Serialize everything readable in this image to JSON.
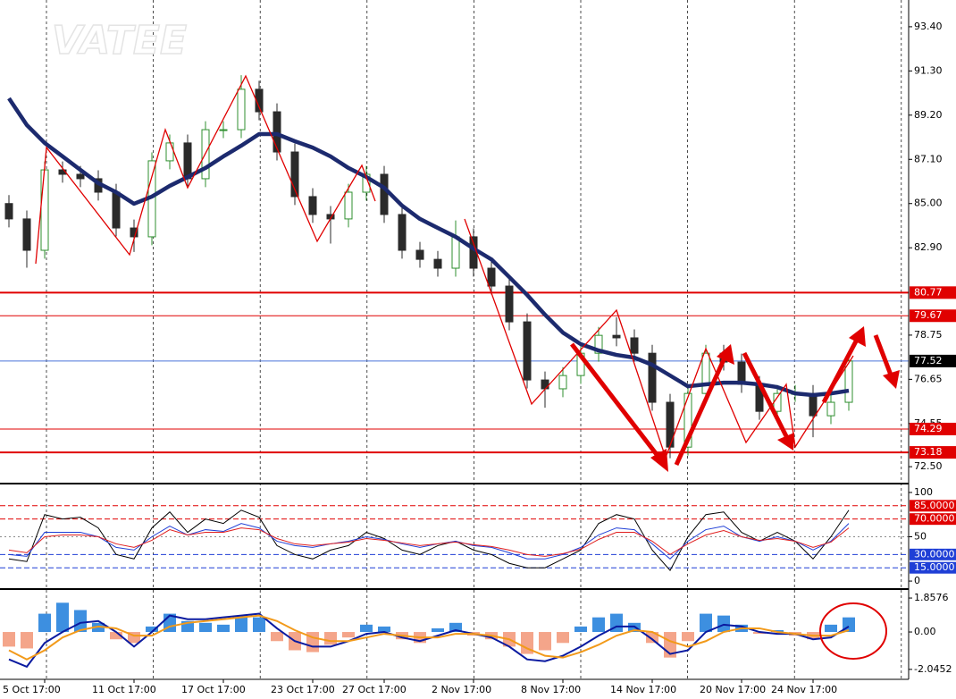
{
  "chart_data": [
    {
      "type": "candlestick",
      "watermark": "VATEE",
      "categories": [
        null,
        null,
        "5 Oct 17:00",
        null,
        null,
        null,
        null,
        "11 Oct 17:00",
        null,
        null,
        null,
        null,
        "17 Oct 17:00",
        null,
        null,
        null,
        null,
        "23 Oct 17:00",
        null,
        null,
        null,
        "27 Oct 17:00",
        null,
        null,
        null,
        null,
        "2 Nov 17:00",
        null,
        null,
        null,
        null,
        "8 Nov 17:00",
        null,
        null,
        null,
        null,
        "14 Nov 17:00",
        null,
        null,
        null,
        null,
        "20 Nov 17:00",
        null,
        null,
        null,
        "24 Nov 17:00",
        null,
        null
      ],
      "open": [
        85.0,
        84.27,
        82.78,
        86.6,
        86.39,
        86.18,
        85.54,
        83.84,
        83.42,
        87.03,
        87.88,
        86.18,
        88.51,
        88.51,
        90.43,
        89.36,
        87.45,
        85.33,
        84.48,
        84.27,
        85.54,
        86.39,
        84.48,
        82.78,
        82.35,
        81.93,
        83.42,
        81.93,
        81.08,
        79.38,
        76.62,
        76.2,
        76.83,
        77.89,
        78.74,
        78.62,
        77.89,
        75.56,
        73.43,
        75.98,
        77.89,
        77.47,
        76.41,
        75.13,
        75.98,
        75.98,
        74.92,
        75.56
      ],
      "high": [
        85.4,
        84.67,
        87.0,
        87.0,
        86.79,
        86.58,
        85.94,
        84.24,
        87.43,
        88.28,
        88.28,
        88.91,
        88.91,
        91.1,
        90.83,
        89.76,
        87.85,
        85.73,
        84.88,
        85.94,
        86.79,
        86.79,
        84.88,
        83.18,
        82.75,
        84.2,
        83.82,
        82.33,
        81.48,
        79.78,
        77.02,
        77.23,
        78.29,
        79.14,
        79.6,
        79.02,
        78.29,
        75.96,
        76.38,
        78.29,
        78.29,
        77.87,
        76.81,
        76.38,
        76.38,
        76.38,
        75.96,
        77.92
      ],
      "low": [
        83.87,
        81.95,
        82.38,
        85.99,
        85.78,
        85.14,
        83.44,
        82.7,
        83.02,
        86.63,
        85.78,
        85.78,
        88.11,
        88.11,
        88.96,
        87.05,
        84.93,
        84.08,
        83.1,
        83.87,
        85.14,
        84.08,
        82.38,
        81.95,
        81.53,
        81.53,
        81.53,
        80.68,
        78.98,
        76.22,
        75.3,
        75.8,
        76.43,
        77.49,
        78.22,
        77.49,
        75.16,
        72.9,
        73.03,
        75.58,
        77.07,
        76.01,
        74.73,
        74.73,
        75.58,
        73.9,
        74.52,
        75.16
      ],
      "close": [
        84.27,
        82.78,
        86.6,
        86.39,
        86.18,
        85.54,
        83.84,
        83.42,
        87.03,
        87.88,
        86.18,
        88.51,
        88.51,
        90.43,
        89.36,
        87.45,
        85.33,
        84.48,
        84.27,
        85.54,
        86.39,
        84.48,
        82.78,
        82.35,
        81.93,
        83.42,
        81.93,
        81.08,
        79.38,
        76.62,
        76.2,
        76.83,
        77.89,
        78.74,
        78.62,
        77.89,
        75.56,
        73.43,
        75.98,
        77.89,
        77.47,
        76.41,
        75.13,
        75.98,
        75.98,
        74.92,
        75.56,
        77.52
      ],
      "up_color": "#2f8f2f",
      "down_color": "#2a2a2a",
      "ma_values": [
        90.0,
        88.73,
        87.88,
        87.24,
        86.6,
        85.97,
        85.54,
        84.99,
        85.33,
        85.84,
        86.26,
        86.69,
        87.24,
        87.75,
        88.3,
        88.3,
        87.96,
        87.66,
        87.24,
        86.69,
        86.26,
        85.75,
        84.9,
        84.27,
        83.84,
        83.42,
        82.86,
        82.35,
        81.51,
        80.66,
        79.72,
        78.87,
        78.32,
        78.02,
        77.81,
        77.68,
        77.34,
        76.83,
        76.32,
        76.41,
        76.49,
        76.49,
        76.41,
        76.28,
        75.98,
        75.9,
        75.98,
        76.11
      ],
      "ma_color": "#1c2a6e",
      "ylim": [
        71.74,
        94.67
      ],
      "yticks": [
        {
          "value": 93.4,
          "label": "93.40"
        },
        {
          "value": 91.3,
          "label": "91.30"
        },
        {
          "value": 89.2,
          "label": "89.20"
        },
        {
          "value": 87.1,
          "label": "87.10"
        },
        {
          "value": 85,
          "label": "85.00"
        },
        {
          "value": 82.9,
          "label": "82.90"
        },
        78.75,
        76.65,
        74.55,
        {
          "value": 72.5,
          "label": "72.50"
        }
      ],
      "levels": [
        {
          "value": 80.77,
          "color": "#e00000",
          "width": 2,
          "label_color": "#e00000"
        },
        {
          "value": 79.67,
          "color": "#e00000",
          "width": 1,
          "label_color": "#e00000"
        },
        {
          "value": 77.52,
          "color": "#4a74d9",
          "width": 1,
          "label_color": "#000000"
        },
        {
          "value": 74.29,
          "color": "#e00000",
          "width": 1,
          "label_color": "#e00000"
        },
        {
          "value": 73.18,
          "color": "#e00000",
          "width": 2,
          "label_color": "#e00000"
        }
      ]
    },
    {
      "type": "line",
      "series": [
        {
          "color": "#000000",
          "values": [
            25,
            22,
            75,
            70,
            72,
            60,
            30,
            25,
            60,
            78,
            55,
            70,
            65,
            80,
            72,
            40,
            30,
            25,
            35,
            40,
            55,
            48,
            35,
            30,
            40,
            45,
            35,
            30,
            20,
            15,
            15,
            25,
            35,
            65,
            75,
            70,
            35,
            12,
            50,
            75,
            78,
            55,
            45,
            55,
            45,
            25,
            50,
            80
          ]
        },
        {
          "color": "#1f3fd6",
          "values": [
            30,
            28,
            55,
            55,
            55,
            50,
            38,
            35,
            50,
            62,
            52,
            58,
            56,
            65,
            60,
            45,
            40,
            38,
            42,
            45,
            50,
            47,
            42,
            38,
            42,
            45,
            40,
            38,
            32,
            25,
            25,
            30,
            38,
            52,
            60,
            58,
            42,
            25,
            45,
            58,
            62,
            50,
            45,
            50,
            45,
            35,
            45,
            65
          ]
        },
        {
          "color": "#e02020",
          "values": [
            35,
            32,
            50,
            52,
            52,
            50,
            42,
            38,
            46,
            58,
            52,
            55,
            55,
            60,
            58,
            48,
            42,
            40,
            42,
            44,
            48,
            46,
            43,
            40,
            42,
            44,
            41,
            39,
            35,
            30,
            28,
            31,
            36,
            47,
            55,
            55,
            45,
            30,
            42,
            52,
            57,
            50,
            46,
            48,
            45,
            38,
            44,
            60
          ]
        }
      ],
      "ylim": [
        -8,
        108
      ],
      "yticks": [
        100,
        50,
        0
      ],
      "levels": [
        {
          "value": 85,
          "label": "85.0000",
          "color": "#e00000"
        },
        {
          "value": 70,
          "label": "70.0000",
          "color": "#e00000"
        },
        {
          "value": 30,
          "label": "30.0000",
          "color": "#1f3fd6"
        },
        {
          "value": 15,
          "label": "15.0000",
          "color": "#1f3fd6"
        }
      ]
    },
    {
      "type": "macd",
      "values": [
        -0.8,
        -0.9,
        1.0,
        1.6,
        1.2,
        0.5,
        -0.4,
        -0.6,
        0.3,
        1.0,
        0.6,
        0.5,
        0.4,
        0.9,
        0.8,
        -0.5,
        -1.0,
        -1.1,
        -0.7,
        -0.3,
        0.4,
        0.3,
        -0.4,
        -0.6,
        0.2,
        0.5,
        -0.2,
        -0.4,
        -0.8,
        -1.2,
        -1.0,
        -0.6,
        0.3,
        0.8,
        1.0,
        0.5,
        -0.6,
        -1.4,
        -0.5,
        1.0,
        0.9,
        0.4,
        -0.1,
        0.1,
        -0.2,
        -0.4,
        0.4,
        0.8
      ],
      "pos_color": "#3d8fe0",
      "neg_color": "#f4a58a",
      "series": [
        {
          "color": "#0a1aa0",
          "values": [
            -1.5,
            -1.9,
            -0.6,
            0.0,
            0.5,
            0.6,
            0.0,
            -0.8,
            0.0,
            0.9,
            0.7,
            0.7,
            0.8,
            0.9,
            1.0,
            0.2,
            -0.5,
            -0.8,
            -0.8,
            -0.5,
            -0.1,
            0.0,
            -0.3,
            -0.5,
            -0.2,
            0.1,
            -0.1,
            -0.3,
            -0.8,
            -1.5,
            -1.6,
            -1.3,
            -0.8,
            -0.2,
            0.3,
            0.3,
            -0.4,
            -1.2,
            -1.0,
            0.0,
            0.4,
            0.3,
            0.0,
            -0.1,
            -0.1,
            -0.4,
            -0.3,
            0.3
          ]
        },
        {
          "color": "#f29a1a",
          "values": [
            -1.0,
            -1.5,
            -1.0,
            -0.3,
            0.1,
            0.3,
            0.2,
            -0.2,
            -0.2,
            0.3,
            0.5,
            0.6,
            0.7,
            0.8,
            0.9,
            0.6,
            0.1,
            -0.3,
            -0.5,
            -0.5,
            -0.3,
            -0.1,
            -0.2,
            -0.3,
            -0.3,
            -0.1,
            -0.1,
            -0.2,
            -0.4,
            -0.9,
            -1.3,
            -1.4,
            -1.1,
            -0.7,
            -0.2,
            0.1,
            0.0,
            -0.5,
            -0.8,
            -0.5,
            0.0,
            0.2,
            0.2,
            0.0,
            -0.1,
            -0.2,
            -0.2,
            0.1
          ]
        }
      ],
      "ylim": [
        -2.59,
        2.3
      ],
      "yticks": [
        1.8576,
        {
          "value": 0,
          "label": "0.00"
        },
        -2.0452
      ]
    }
  ]
}
